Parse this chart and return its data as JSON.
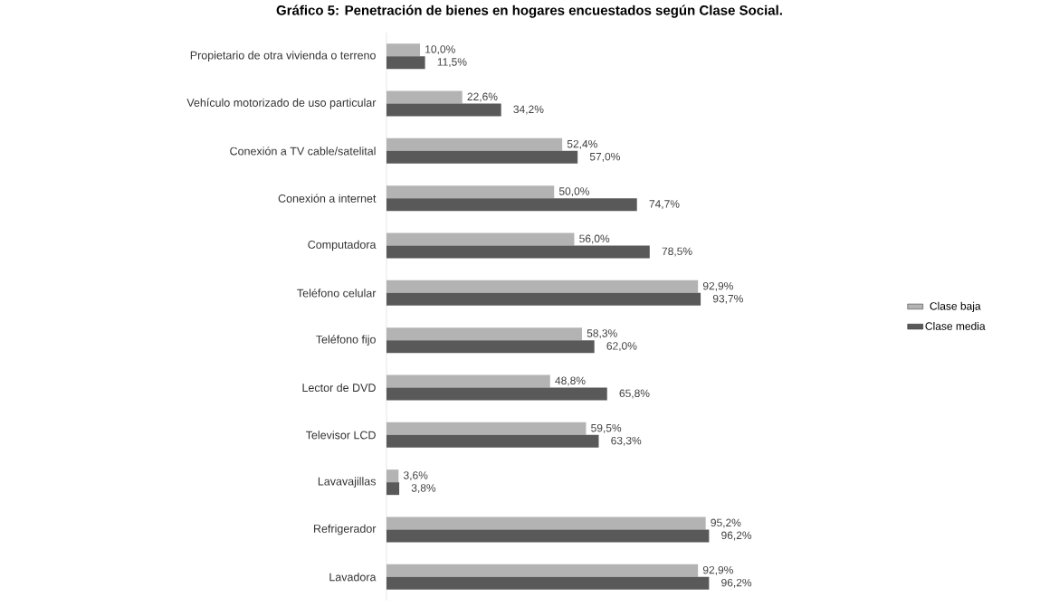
{
  "chart_data": {
    "type": "bar",
    "orientation": "horizontal",
    "title": "Gráfico 5: Penetración de bienes en hogares encuestados según Clase Social.",
    "categories": [
      "Propietario de otra vivienda o terreno",
      "Vehículo motorizado de uso particular",
      "Conexión a TV cable/satelital",
      "Conexión a internet",
      "Computadora",
      "Teléfono celular",
      "Teléfono fijo",
      "Lector de DVD",
      "Televisor LCD",
      "Lavavajillas",
      "Refrigerador",
      "Lavadora"
    ],
    "series": [
      {
        "name": "Clase baja",
        "color": "#b3b3b3",
        "values": [
          10.0,
          22.6,
          52.4,
          50.0,
          56.0,
          92.9,
          58.3,
          48.8,
          59.5,
          3.6,
          95.2,
          92.9
        ],
        "value_labels": [
          "10,0%",
          "22,6%",
          "52,4%",
          "50,0%",
          "56,0%",
          "92,9%",
          "58,3%",
          "48,8%",
          "59,5%",
          "3,6%",
          "95,2%",
          "92,9%"
        ]
      },
      {
        "name": "Clase media",
        "color": "#595959",
        "values": [
          11.5,
          34.2,
          57.0,
          74.7,
          78.5,
          93.7,
          62.0,
          65.8,
          63.3,
          3.8,
          96.2,
          96.2
        ],
        "value_labels": [
          "11,5%",
          "34,2%",
          "57,0%",
          "74,7%",
          "78,5%",
          "93,7%",
          "62,0%",
          "65,8%",
          "63,3%",
          "3,8%",
          "96,2%",
          "96,2%"
        ]
      }
    ],
    "legend": "right"
  }
}
